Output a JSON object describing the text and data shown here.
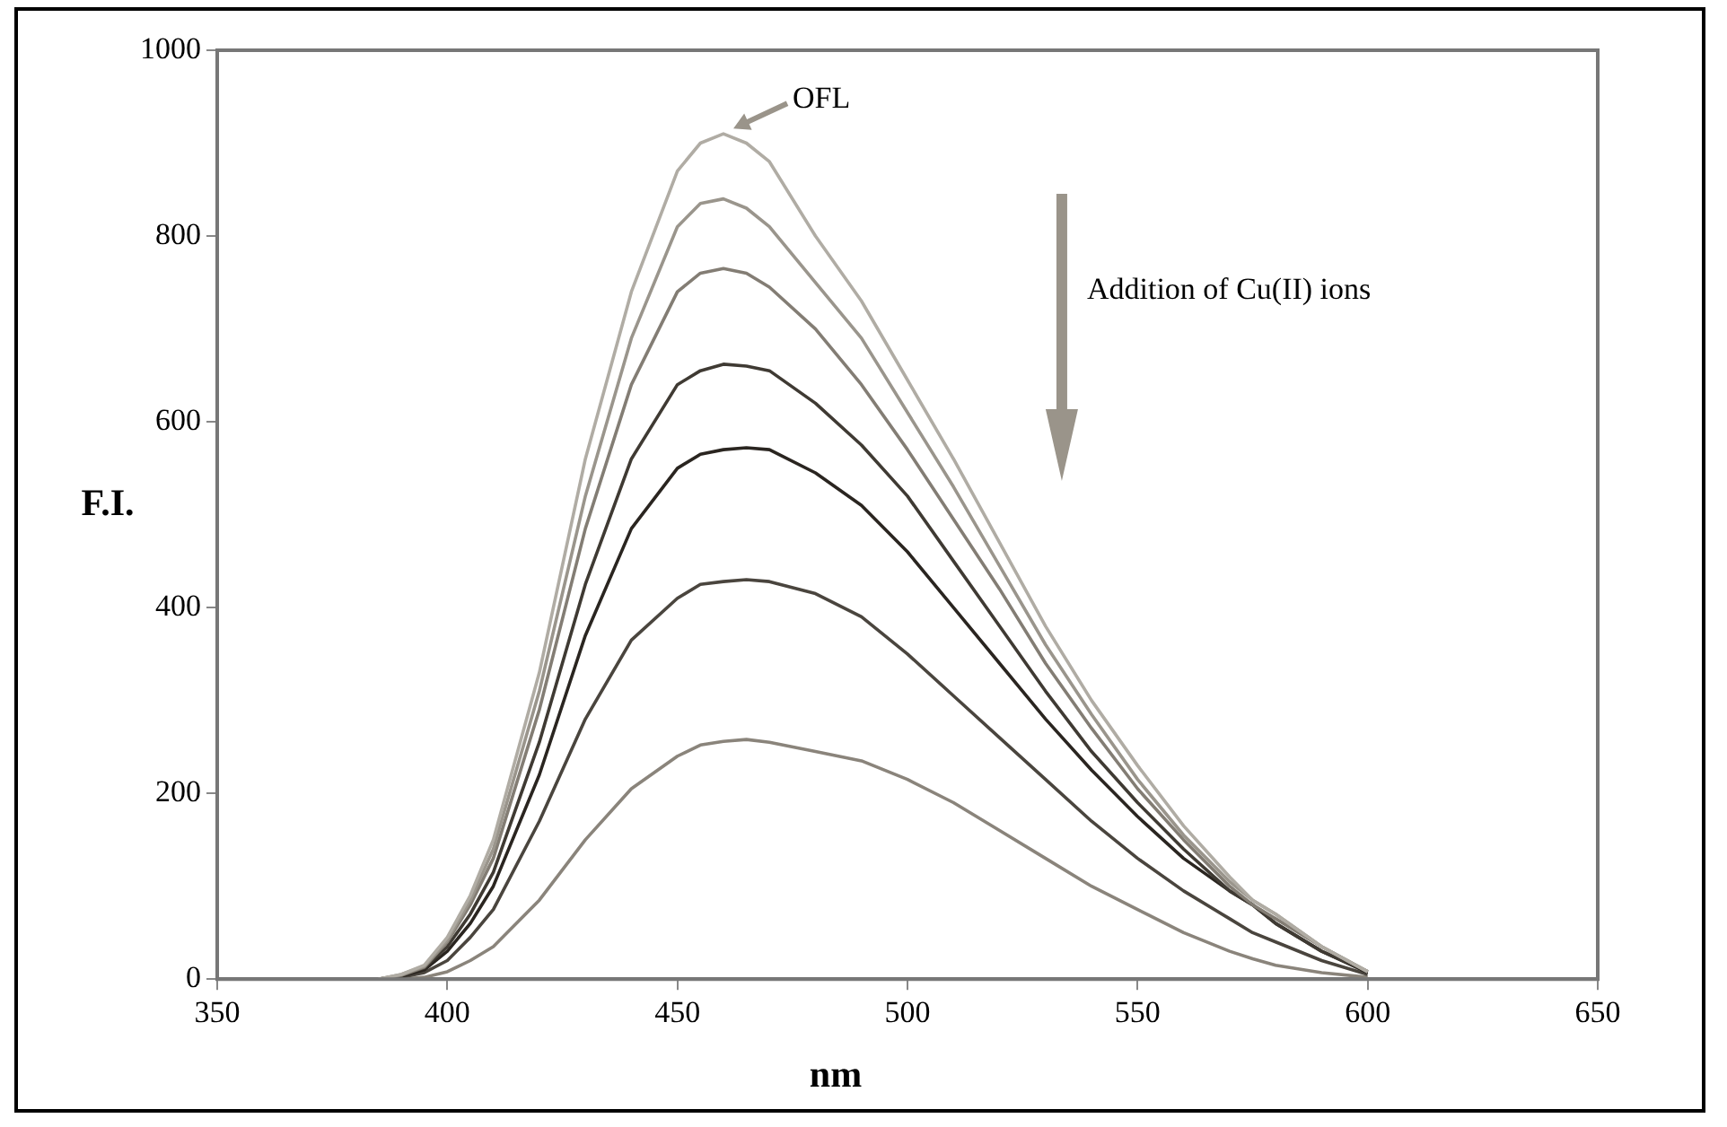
{
  "chart_data": {
    "type": "line",
    "xlabel": "nm",
    "ylabel": "F.I.",
    "x": [
      385,
      390,
      395,
      400,
      405,
      410,
      420,
      430,
      440,
      450,
      455,
      460,
      465,
      470,
      480,
      490,
      500,
      510,
      520,
      530,
      540,
      550,
      560,
      570,
      575,
      580,
      590,
      600
    ],
    "xlim": [
      350,
      650
    ],
    "xticks": [
      350,
      400,
      450,
      500,
      550,
      600,
      650
    ],
    "ylim": [
      0,
      1000
    ],
    "yticks": [
      0,
      200,
      400,
      600,
      800,
      1000
    ],
    "grid": false,
    "legend": false,
    "marker": "none",
    "line_style": "solid",
    "series": [
      {
        "color": "#b0aca4",
        "values": [
          0,
          5,
          15,
          45,
          90,
          150,
          330,
          560,
          740,
          870,
          900,
          910,
          900,
          880,
          800,
          730,
          645,
          560,
          470,
          380,
          300,
          230,
          165,
          110,
          85,
          70,
          35,
          8
        ]
      },
      {
        "color": "#9a958c",
        "values": [
          0,
          5,
          14,
          42,
          85,
          140,
          310,
          520,
          690,
          810,
          835,
          840,
          830,
          810,
          750,
          690,
          610,
          530,
          445,
          360,
          285,
          215,
          155,
          105,
          85,
          70,
          35,
          8
        ]
      },
      {
        "color": "#837d74",
        "values": [
          0,
          4,
          13,
          40,
          80,
          130,
          290,
          485,
          640,
          740,
          760,
          765,
          760,
          745,
          700,
          640,
          570,
          495,
          420,
          340,
          270,
          205,
          150,
          100,
          80,
          65,
          35,
          8
        ]
      },
      {
        "color": "#3f3a33",
        "values": [
          0,
          4,
          12,
          35,
          70,
          115,
          255,
          425,
          560,
          640,
          655,
          662,
          660,
          655,
          620,
          575,
          520,
          450,
          380,
          310,
          245,
          190,
          140,
          95,
          80,
          60,
          30,
          8
        ]
      },
      {
        "color": "#2a2520",
        "values": [
          0,
          3,
          10,
          30,
          60,
          100,
          220,
          370,
          485,
          550,
          565,
          570,
          572,
          570,
          545,
          510,
          460,
          400,
          340,
          280,
          225,
          175,
          130,
          95,
          80,
          60,
          30,
          7
        ]
      },
      {
        "color": "#4a453e",
        "values": [
          0,
          2,
          7,
          20,
          45,
          75,
          170,
          280,
          365,
          410,
          425,
          428,
          430,
          428,
          415,
          390,
          350,
          305,
          260,
          215,
          170,
          130,
          95,
          65,
          50,
          40,
          20,
          5
        ]
      },
      {
        "color": "#8a847b",
        "values": [
          0,
          0,
          2,
          8,
          20,
          35,
          85,
          150,
          205,
          240,
          252,
          256,
          258,
          255,
          245,
          235,
          215,
          190,
          160,
          130,
          100,
          75,
          50,
          30,
          22,
          15,
          7,
          2
        ]
      }
    ],
    "annotations": [
      {
        "text": "OFL",
        "x": 461,
        "y": 908
      },
      "Addition of Cu(II) ions"
    ]
  }
}
